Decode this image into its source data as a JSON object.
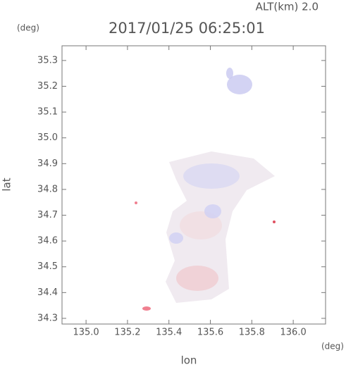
{
  "chart_data": {
    "type": "map",
    "annotation": "ALT(km) 2.0",
    "title": "2017/01/25 06:25:01",
    "y_unit": "(deg)",
    "x_unit": "(deg)",
    "ylabel": "lat",
    "xlabel": "lon",
    "xlim": [
      134.884,
      136.156
    ],
    "xticks": [
      {
        "value": 135,
        "label": "135.0"
      },
      135.2,
      135.4,
      135.6,
      135.8,
      {
        "value": 136,
        "label": "136.0"
      }
    ],
    "ylim": [
      34.278,
      35.357
    ],
    "yticks": [
      34.3,
      34.4,
      34.5,
      34.6,
      34.7,
      34.8,
      34.9,
      {
        "value": 35,
        "label": "35.0"
      },
      35.1,
      35.2,
      35.3
    ]
  }
}
